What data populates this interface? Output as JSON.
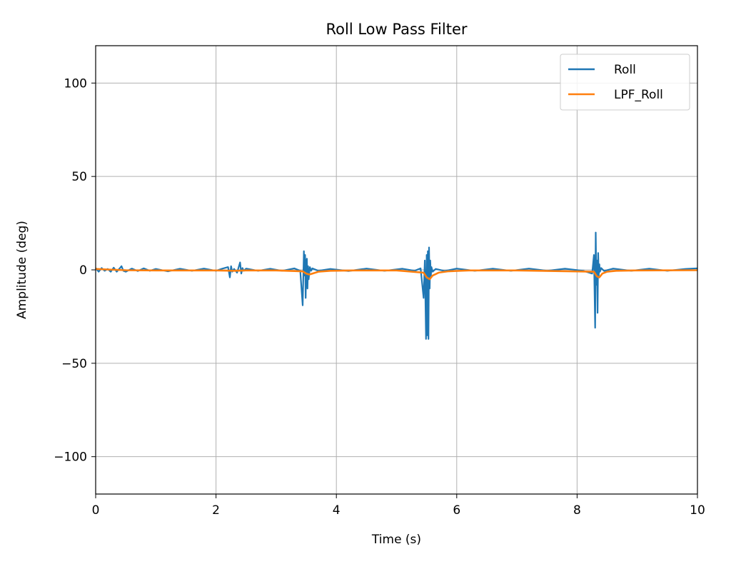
{
  "chart_data": {
    "type": "line",
    "title": "Roll Low Pass Filter",
    "xlabel": "Time (s)",
    "ylabel": "Amplitude (deg)",
    "xlim": [
      0,
      10
    ],
    "ylim": [
      -120,
      120
    ],
    "xticks": [
      0,
      2,
      4,
      6,
      8,
      10
    ],
    "xtick_labels": [
      "0",
      "2",
      "4",
      "6",
      "8",
      "10"
    ],
    "yticks": [
      -100,
      -50,
      0,
      50,
      100
    ],
    "ytick_labels": [
      "−100",
      "−50",
      "0",
      "50",
      "100"
    ],
    "grid": true,
    "legend_position": "top-right",
    "series": [
      {
        "name": "Roll",
        "color": "#1f77b4",
        "x": [
          0,
          0.05,
          0.1,
          0.15,
          0.2,
          0.25,
          0.3,
          0.35,
          0.4,
          0.43,
          0.46,
          0.5,
          0.6,
          0.7,
          0.8,
          0.9,
          1.0,
          1.2,
          1.4,
          1.6,
          1.8,
          2.0,
          2.1,
          2.2,
          2.23,
          2.25,
          2.27,
          2.3,
          2.35,
          2.4,
          2.42,
          2.44,
          2.46,
          2.5,
          2.7,
          2.9,
          3.1,
          3.3,
          3.4,
          3.44,
          3.46,
          3.47,
          3.48,
          3.49,
          3.5,
          3.51,
          3.52,
          3.53,
          3.54,
          3.56,
          3.58,
          3.6,
          3.7,
          3.9,
          4.2,
          4.5,
          4.8,
          5.1,
          5.3,
          5.4,
          5.45,
          5.47,
          5.49,
          5.5,
          5.51,
          5.52,
          5.53,
          5.54,
          5.55,
          5.56,
          5.57,
          5.58,
          5.6,
          5.65,
          5.8,
          6.0,
          6.3,
          6.6,
          6.9,
          7.2,
          7.5,
          7.8,
          8.1,
          8.25,
          8.28,
          8.3,
          8.31,
          8.32,
          8.33,
          8.34,
          8.35,
          8.36,
          8.37,
          8.38,
          8.4,
          8.45,
          8.6,
          8.9,
          9.2,
          9.5,
          9.8,
          10.0
        ],
        "values": [
          1,
          -1,
          1,
          -0.5,
          0.5,
          -1,
          1.2,
          -1,
          0.8,
          2,
          -0.5,
          -1,
          0.7,
          -0.6,
          0.8,
          -0.5,
          0.5,
          -0.8,
          0.6,
          -0.5,
          0.7,
          -0.5,
          0.6,
          1.5,
          -4,
          2,
          -1,
          0.5,
          -1.5,
          4,
          -2,
          1,
          -0.5,
          0.7,
          -0.5,
          0.6,
          -0.5,
          0.8,
          -0.5,
          -19,
          10,
          -3,
          8,
          -15,
          4,
          6,
          -10,
          2,
          -5,
          1.5,
          -0.5,
          0.8,
          -0.5,
          0.5,
          -0.6,
          0.7,
          -0.5,
          0.6,
          -0.5,
          0.8,
          -15,
          5,
          -37,
          8,
          -35,
          10,
          -37,
          12,
          -10,
          5,
          -3,
          1.5,
          -1,
          0.5,
          -0.6,
          0.7,
          -0.5,
          0.6,
          -0.5,
          0.7,
          -0.5,
          0.6,
          -0.5,
          -2,
          8,
          -31,
          20,
          -8,
          5,
          -23,
          9,
          -3,
          3,
          -1,
          1,
          -0.6,
          0.7,
          -0.5,
          0.6,
          -0.5,
          0.5,
          0.8
        ]
      },
      {
        "name": "LPF_Roll",
        "color": "#ff7f0e",
        "x": [
          0,
          0.2,
          0.5,
          1.0,
          2.0,
          2.3,
          2.5,
          3.0,
          3.44,
          3.5,
          3.55,
          3.6,
          3.7,
          3.9,
          4.3,
          5.0,
          5.45,
          5.5,
          5.55,
          5.6,
          5.7,
          5.85,
          6.2,
          7.0,
          8.28,
          8.33,
          8.37,
          8.42,
          8.5,
          8.65,
          9.0,
          10.0
        ],
        "values": [
          0.5,
          0.2,
          -0.2,
          -0.3,
          -0.3,
          -0.5,
          -0.3,
          -0.3,
          -0.8,
          -2,
          -2.5,
          -2,
          -1,
          -0.5,
          -0.3,
          -0.3,
          -1.5,
          -4,
          -5,
          -3,
          -1.5,
          -0.8,
          -0.3,
          -0.3,
          -1,
          -3.5,
          -4,
          -2,
          -1,
          -0.5,
          -0.3,
          -0.2
        ]
      }
    ]
  }
}
